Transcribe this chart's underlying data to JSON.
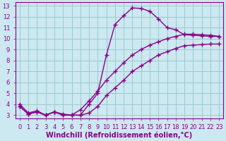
{
  "title": "",
  "xlabel": "Windchill (Refroidissement éolien,°C)",
  "bg_color": "#cce8f0",
  "line_color": "#880088",
  "grid_color": "#99cccc",
  "xlim": [
    -0.5,
    23.5
  ],
  "ylim": [
    2.7,
    13.3
  ],
  "xticks": [
    0,
    1,
    2,
    3,
    4,
    5,
    6,
    7,
    8,
    9,
    10,
    11,
    12,
    13,
    14,
    15,
    16,
    17,
    18,
    19,
    20,
    21,
    22,
    23
  ],
  "yticks": [
    3,
    4,
    5,
    6,
    7,
    8,
    9,
    10,
    11,
    12,
    13
  ],
  "line1_x": [
    0,
    1,
    2,
    3,
    4,
    5,
    6,
    7,
    8,
    9,
    10,
    11,
    12,
    13,
    14,
    15,
    16,
    17,
    18,
    19,
    20,
    21,
    22,
    23
  ],
  "line1_y": [
    4.0,
    3.2,
    3.4,
    3.0,
    3.3,
    3.1,
    3.0,
    3.0,
    4.0,
    5.0,
    8.5,
    11.3,
    12.1,
    12.8,
    12.75,
    12.5,
    11.8,
    11.0,
    10.8,
    10.35,
    10.3,
    10.25,
    10.2,
    10.2
  ],
  "line2_x": [
    0,
    1,
    2,
    3,
    4,
    5,
    6,
    7,
    8,
    9,
    10,
    11,
    12,
    13,
    14,
    15,
    16,
    17,
    18,
    19,
    20,
    21,
    22,
    23
  ],
  "line2_y": [
    3.8,
    3.1,
    3.3,
    3.0,
    3.3,
    3.0,
    3.0,
    3.5,
    4.3,
    5.2,
    6.2,
    7.0,
    7.8,
    8.5,
    9.0,
    9.4,
    9.7,
    10.0,
    10.2,
    10.4,
    10.4,
    10.35,
    10.3,
    10.2
  ],
  "line3_x": [
    0,
    1,
    2,
    3,
    4,
    5,
    6,
    7,
    8,
    9,
    10,
    11,
    12,
    13,
    14,
    15,
    16,
    17,
    18,
    19,
    20,
    21,
    22,
    23
  ],
  "line3_y": [
    3.8,
    3.1,
    3.3,
    3.0,
    3.3,
    3.0,
    3.0,
    3.0,
    3.2,
    3.8,
    4.8,
    5.5,
    6.2,
    7.0,
    7.5,
    8.0,
    8.5,
    8.8,
    9.1,
    9.35,
    9.4,
    9.45,
    9.5,
    9.5
  ],
  "marker": "+",
  "markersize": 4,
  "linewidth": 1.0,
  "tick_fontsize": 6.0,
  "xlabel_fontsize": 7.0
}
